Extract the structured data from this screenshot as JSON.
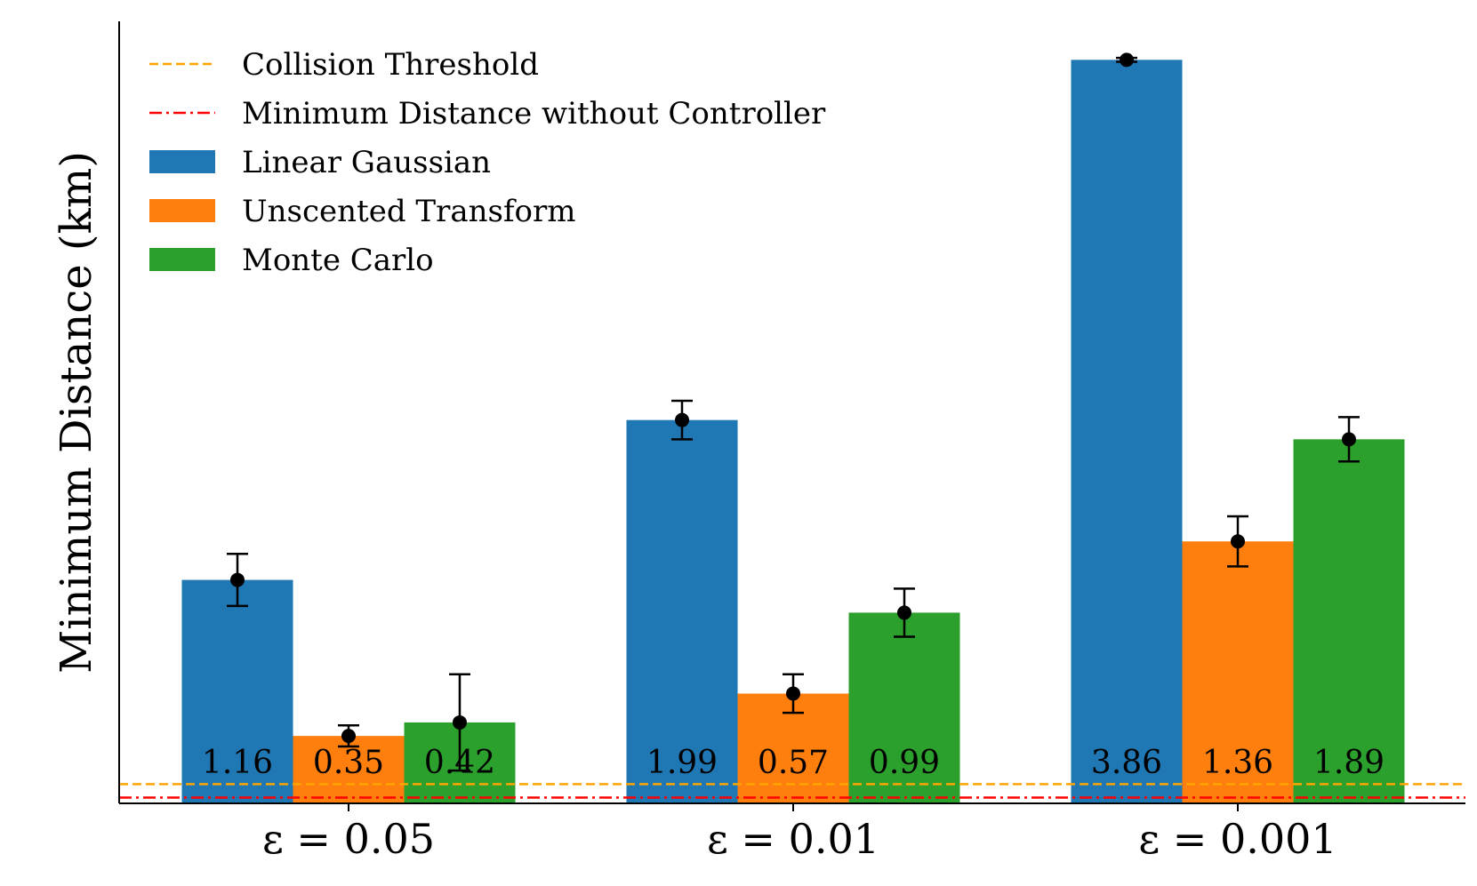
{
  "chart_data": {
    "type": "bar",
    "title": "",
    "xlabel": "",
    "ylabel": "Minimum Distance (km)",
    "ylim": [
      0,
      4.06
    ],
    "grid": false,
    "legend_position": "top-left",
    "categories": [
      "ε = 0.05",
      "ε = 0.01",
      "ε = 0.001"
    ],
    "series": [
      {
        "name": "Linear Gaussian",
        "color": "#1f77b4",
        "values": [
          1.16,
          1.99,
          3.86
        ],
        "errors": [
          0.135,
          0.1,
          0.01
        ],
        "labels": [
          "1.16",
          "1.99",
          "3.86"
        ]
      },
      {
        "name": "Unscented Transform",
        "color": "#ff7f0e",
        "values": [
          0.35,
          0.57,
          1.36
        ],
        "errors": [
          0.055,
          0.1,
          0.13
        ],
        "labels": [
          "0.35",
          "0.57",
          "1.36"
        ]
      },
      {
        "name": "Monte Carlo",
        "color": "#2ca02c",
        "values": [
          0.42,
          0.99,
          1.89
        ],
        "errors": [
          0.25,
          0.125,
          0.115
        ],
        "labels": [
          "0.42",
          "0.99",
          "1.89"
        ]
      }
    ],
    "reference_lines": [
      {
        "name": "Collision Threshold",
        "value": 0.1,
        "color": "#ffa500",
        "style": "dashed"
      },
      {
        "name": "Minimum Distance without Controller",
        "value": 0.03,
        "color": "#ff0000",
        "style": "dashdot"
      }
    ]
  }
}
